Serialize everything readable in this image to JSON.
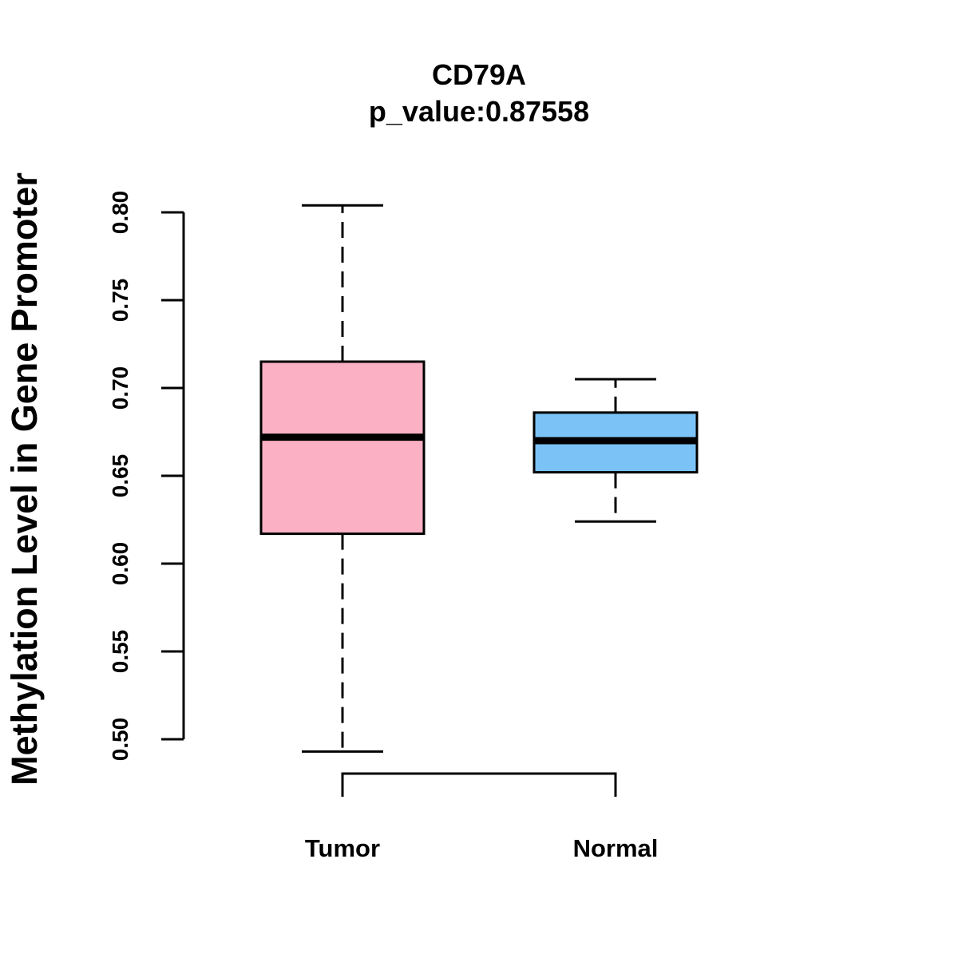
{
  "chart_data": {
    "type": "boxplot",
    "title": "CD79A",
    "subtitle": "p_value:0.87558",
    "ylabel": "Methylation Level in Gene Promoter",
    "xlabel": "",
    "ylim": [
      0.49,
      0.81
    ],
    "y_ticks": [
      0.5,
      0.55,
      0.6,
      0.65,
      0.7,
      0.75,
      0.8
    ],
    "y_tick_labels": [
      "0.50",
      "0.55",
      "0.60",
      "0.65",
      "0.70",
      "0.75",
      "0.80"
    ],
    "categories": [
      "Tumor",
      "Normal"
    ],
    "groups": [
      {
        "name": "Tumor",
        "color": "#FBB1C3",
        "whisker_low": 0.493,
        "q1": 0.617,
        "median": 0.672,
        "q3": 0.715,
        "whisker_high": 0.804
      },
      {
        "name": "Normal",
        "color": "#7BC3F6",
        "whisker_low": 0.624,
        "q1": 0.652,
        "median": 0.67,
        "q3": 0.686,
        "whisker_high": 0.705
      }
    ]
  }
}
